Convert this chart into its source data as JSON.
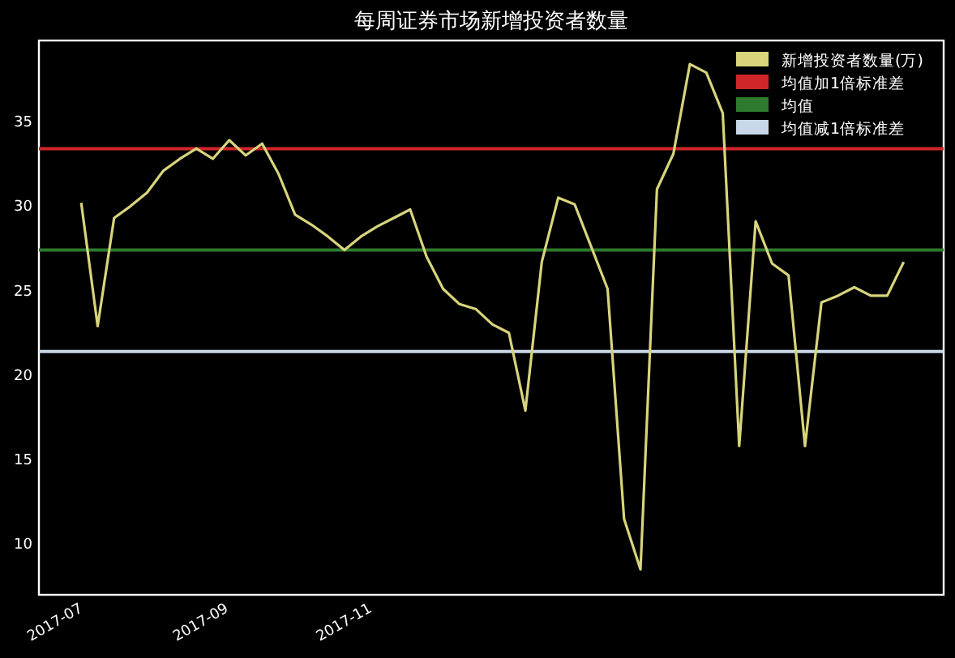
{
  "chart_data": {
    "type": "line",
    "title": "每周证券市场新增投资者数量",
    "x": [
      "2017-06-30",
      "2017-07-07",
      "2017-07-14",
      "2017-07-21",
      "2017-07-28",
      "2017-08-04",
      "2017-08-11",
      "2017-08-18",
      "2017-08-25",
      "2017-09-01",
      "2017-09-08",
      "2017-09-15",
      "2017-09-22",
      "2017-09-29",
      "2017-10-06",
      "2017-10-13",
      "2017-10-20",
      "2017-10-27",
      "2017-11-03",
      "2017-11-10",
      "2017-11-17",
      "2017-11-24",
      "2017-12-01",
      "2017-12-08",
      "2017-12-15",
      "2017-12-22",
      "2017-12-29",
      "2018-01-05",
      "2018-01-12",
      "2018-01-19",
      "2018-01-26",
      "2018-02-02",
      "2018-02-09",
      "2018-02-16",
      "2018-02-23",
      "2018-03-02",
      "2018-03-09",
      "2018-03-16",
      "2018-03-23",
      "2018-03-30",
      "2018-04-06",
      "2018-04-13",
      "2018-04-20",
      "2018-04-27",
      "2018-05-04",
      "2018-05-11",
      "2018-05-18",
      "2018-05-25",
      "2018-06-01",
      "2018-06-08",
      "2018-06-15"
    ],
    "series": [
      {
        "name": "新增投资者数量(万)",
        "color": "#d8d47c",
        "values": [
          30.2,
          22.9,
          29.3,
          30.0,
          30.8,
          32.1,
          32.8,
          33.4,
          32.8,
          33.9,
          33.0,
          33.7,
          31.9,
          29.5,
          28.9,
          28.2,
          27.4,
          28.2,
          28.8,
          29.3,
          29.8,
          27.0,
          25.1,
          24.2,
          23.9,
          23.0,
          22.5,
          17.9,
          26.7,
          30.5,
          30.1,
          27.6,
          25.1,
          11.5,
          8.5,
          31.0,
          33.1,
          38.4,
          37.9,
          35.5,
          15.8,
          29.1,
          26.6,
          25.9,
          15.8,
          24.3,
          24.7,
          25.2,
          24.7,
          24.7,
          26.7
        ]
      }
    ],
    "xlim": [
      "2017-06-12",
      "2018-07-02"
    ],
    "xticks": [
      {
        "value": "2017-07-01",
        "label": "2017-07"
      },
      {
        "value": "2017-09-01",
        "label": "2017-09"
      },
      {
        "value": "2017-11-01",
        "label": "2017-11"
      }
    ],
    "ylim": [
      7,
      39.8
    ],
    "yticks": [
      10,
      15,
      20,
      25,
      30,
      35
    ],
    "ref_lines": [
      {
        "axis": "y",
        "value": 33.4,
        "label": "均值加1倍标准差",
        "color": "#d0262a"
      },
      {
        "axis": "y",
        "value": 27.4,
        "label": "均值",
        "color": "#2e7a2e"
      },
      {
        "axis": "y",
        "value": 21.4,
        "label": "均值减1倍标准差",
        "color": "#c8d8e8"
      }
    ],
    "legend": "top right",
    "grid": false
  }
}
